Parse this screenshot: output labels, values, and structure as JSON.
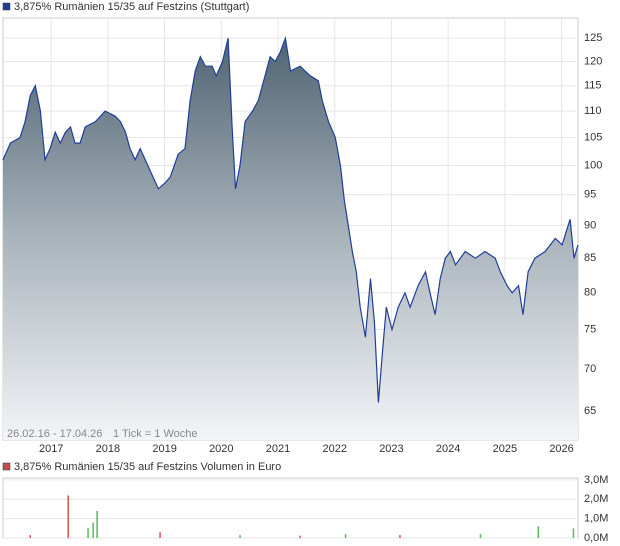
{
  "chart_data": [
    {
      "type": "area",
      "title": "3,875% Rumänien 15/35 auf Festzins (Stuttgart)",
      "color": "#1f3f99",
      "log_scale": true,
      "grid": true,
      "annotations": [
        "26.02.16 - 17.04.26",
        "1 Tick = 1 Woche"
      ],
      "x": [
        2016.15,
        2016.28,
        2016.45,
        2016.54,
        2016.63,
        2016.72,
        2016.81,
        2016.89,
        2016.98,
        2017.07,
        2017.16,
        2017.25,
        2017.34,
        2017.42,
        2017.51,
        2017.6,
        2017.78,
        2017.95,
        2018.13,
        2018.22,
        2018.31,
        2018.39,
        2018.48,
        2018.57,
        2018.75,
        2018.89,
        2019.01,
        2019.1,
        2019.24,
        2019.36,
        2019.45,
        2019.54,
        2019.63,
        2019.72,
        2019.84,
        2019.91,
        2020.02,
        2020.12,
        2020.19,
        2020.25,
        2020.33,
        2020.42,
        2020.55,
        2020.65,
        2020.77,
        2020.86,
        2020.95,
        2021.04,
        2021.13,
        2021.22,
        2021.39,
        2021.57,
        2021.71,
        2021.78,
        2021.89,
        2022.01,
        2022.1,
        2022.17,
        2022.24,
        2022.31,
        2022.38,
        2022.45,
        2022.54,
        2022.63,
        2022.7,
        2022.77,
        2022.84,
        2022.91,
        2023.01,
        2023.12,
        2023.24,
        2023.33,
        2023.47,
        2023.6,
        2023.68,
        2023.77,
        2023.86,
        2023.95,
        2024.04,
        2024.13,
        2024.3,
        2024.48,
        2024.65,
        2024.83,
        2024.92,
        2025.04,
        2025.13,
        2025.24,
        2025.32,
        2025.41,
        2025.53,
        2025.71,
        2025.89,
        2026.01,
        2026.08,
        2026.15,
        2026.22,
        2026.29
      ],
      "values": [
        101,
        104,
        105,
        108,
        113,
        115,
        110,
        101,
        103,
        106,
        104,
        106,
        107,
        104,
        104,
        107,
        108,
        110,
        109,
        108,
        106,
        103,
        101,
        103,
        99,
        96,
        97,
        98,
        102,
        103,
        112,
        118,
        121,
        119,
        119,
        117,
        120,
        125,
        107,
        96,
        100,
        108,
        110,
        112,
        117,
        121,
        120,
        122,
        125,
        118,
        119,
        117,
        116,
        112,
        108,
        105,
        100,
        94,
        90,
        86,
        83,
        78,
        74,
        82,
        76,
        66,
        72,
        78,
        75,
        78,
        80,
        78,
        81,
        83,
        80,
        77,
        82,
        85,
        86,
        84,
        86,
        85,
        86,
        85,
        83,
        81,
        80,
        81,
        77,
        83,
        85,
        86,
        88,
        87,
        89,
        91,
        85,
        87
      ],
      "xlim": [
        2016.15,
        2026.29
      ],
      "xticks": [
        2017,
        2018,
        2019,
        2020,
        2021,
        2022,
        2023,
        2024,
        2025,
        2026
      ],
      "ylim": [
        61.8,
        129.5
      ],
      "yticks": [
        65,
        70,
        75,
        80,
        85,
        90,
        95,
        100,
        105,
        110,
        115,
        120,
        125
      ]
    },
    {
      "type": "bar",
      "title": "3,875% Rumänien 15/35 auf Festzins Volumen in Euro",
      "color": "#c0504d",
      "grid": true,
      "x": [
        2016.63,
        2017.3,
        2017.65,
        2017.74,
        2017.81,
        2018.92,
        2020.33,
        2021.39,
        2022.19,
        2023.15,
        2024.57,
        2025.59,
        2026.21
      ],
      "values": [
        150000,
        2200000,
        500000,
        800000,
        1400000,
        300000,
        150000,
        120000,
        200000,
        150000,
        200000,
        600000,
        500000
      ],
      "colors": [
        "#d9534f",
        "#d9534f",
        "#5cb85c",
        "#5cb85c",
        "#5cb85c",
        "#d9534f",
        "#5cb85c",
        "#d9534f",
        "#5cb85c",
        "#d9534f",
        "#5cb85c",
        "#5cb85c",
        "#5cb85c"
      ],
      "xlim": [
        2016.15,
        2026.29
      ],
      "ylim": [
        0,
        3100000
      ],
      "yticks": [
        {
          "value": 0,
          "label": "0,0M"
        },
        {
          "value": 1000000,
          "label": "1,0M"
        },
        {
          "value": 2000000,
          "label": "2,0M"
        },
        {
          "value": 3000000,
          "label": "3,0M"
        }
      ]
    }
  ]
}
